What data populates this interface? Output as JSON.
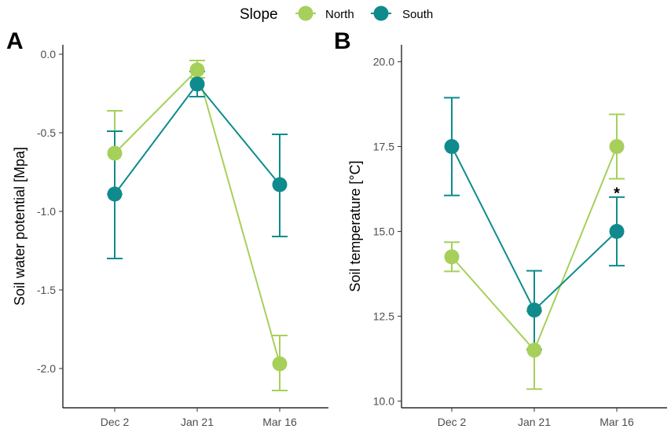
{
  "legend": {
    "title": "Slope",
    "entries": [
      {
        "name": "North",
        "color": "#a6d05a"
      },
      {
        "name": "South",
        "color": "#0f8b8d"
      }
    ]
  },
  "chart_data": [
    {
      "type": "line",
      "panel_label": "A",
      "categories": [
        "Dec 2",
        "Jan 21",
        "Mar 16"
      ],
      "ylabel": "Soil water potential [Mpa]",
      "xlabel": "",
      "ylim": [
        -2.25,
        0.06
      ],
      "yticks": [
        0.0,
        -0.5,
        -1.0,
        -1.5,
        -2.0
      ],
      "ytick_labels": [
        "0.0",
        "-0.5",
        "-1.0",
        "-1.5",
        "-2.0"
      ],
      "grid": false,
      "series": [
        {
          "name": "North",
          "color": "#a6d05a",
          "values": [
            -0.63,
            -0.1,
            -1.97
          ],
          "err_low": [
            -0.89,
            -0.15,
            -2.14
          ],
          "err_high": [
            -0.36,
            -0.04,
            -1.79
          ]
        },
        {
          "name": "South",
          "color": "#0f8b8d",
          "values": [
            -0.89,
            -0.19,
            -0.83
          ],
          "err_low": [
            -1.3,
            -0.27,
            -1.16
          ],
          "err_high": [
            -0.49,
            -0.11,
            -0.51
          ]
        }
      ],
      "annotations": []
    },
    {
      "type": "line",
      "panel_label": "B",
      "categories": [
        "Dec 2",
        "Jan 21",
        "Mar 16"
      ],
      "ylabel": "Soil temperature [°C]",
      "xlabel": "",
      "ylim": [
        9.8,
        20.5
      ],
      "yticks": [
        10.0,
        12.5,
        15.0,
        17.5,
        20.0
      ],
      "ytick_labels": [
        "10.0",
        "12.5",
        "15.0",
        "17.5",
        "20.0"
      ],
      "grid": false,
      "series": [
        {
          "name": "North",
          "color": "#a6d05a",
          "values": [
            14.25,
            11.5,
            17.5
          ],
          "err_low": [
            13.82,
            10.35,
            16.55
          ],
          "err_high": [
            14.68,
            12.65,
            18.45
          ]
        },
        {
          "name": "South",
          "color": "#0f8b8d",
          "values": [
            17.5,
            12.68,
            15.0
          ],
          "err_low": [
            16.06,
            11.52,
            13.99
          ],
          "err_high": [
            18.94,
            13.84,
            16.01
          ]
        }
      ],
      "annotations": [
        {
          "text": "*",
          "category": "Mar 16",
          "y": 16.25
        }
      ]
    }
  ]
}
